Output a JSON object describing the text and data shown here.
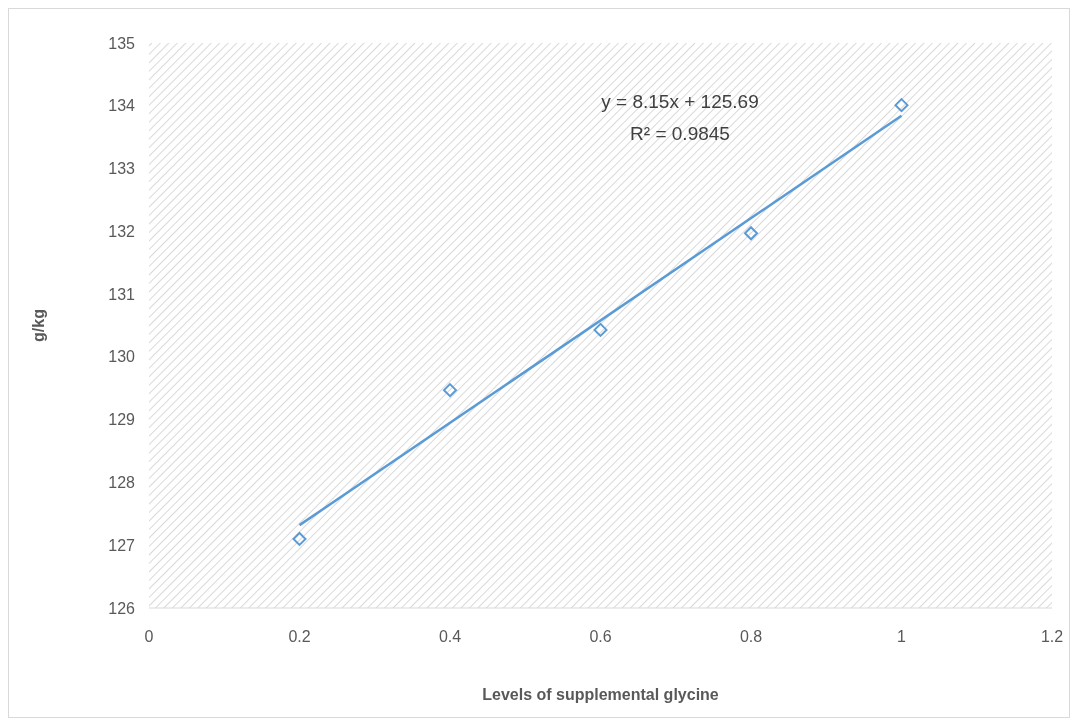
{
  "chart_data": {
    "type": "scatter",
    "xlabel": "Levels of supplemental glycine",
    "ylabel": "g/kg",
    "xlim": [
      0,
      1.2
    ],
    "xticks": [
      0,
      0.2,
      0.4,
      0.6,
      0.8,
      1,
      1.2
    ],
    "ylim": [
      126,
      135
    ],
    "yticks": [
      126,
      127,
      128,
      129,
      130,
      131,
      132,
      133,
      134,
      135
    ],
    "marker": "diamond",
    "grid": false,
    "series": [
      {
        "color": "#5b9bd5",
        "x": [
          0.2,
          0.4,
          0.6,
          0.8,
          1
        ],
        "values": [
          127.1,
          129.47,
          130.43,
          131.97,
          134.01
        ]
      },
      {
        "type": "line",
        "color": "#5b9bd5",
        "x": [
          0.2,
          1
        ],
        "values": [
          127.32,
          133.84
        ],
        "marker": "none"
      }
    ],
    "annotations": [
      "y = 8.15x + 125.69",
      "R² = 0.9845"
    ]
  }
}
